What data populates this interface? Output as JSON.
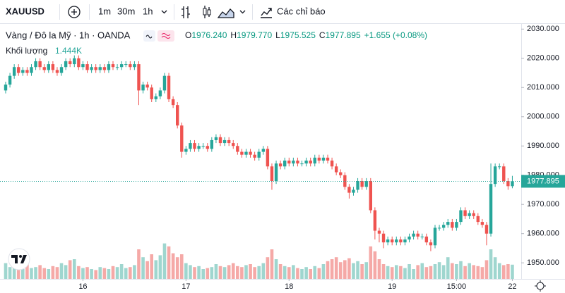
{
  "chart_data": {
    "type": "candlestick",
    "symbol": "XAUUSD",
    "toolbar": {
      "intervals": [
        "1m",
        "30m",
        "1h"
      ],
      "indicators": "Các chỉ báo"
    },
    "title": "Vàng / Đô la Mỹ · 1h · OANDA",
    "ohlc": [
      {
        "key": "O",
        "text": "1976.240"
      },
      {
        "key": "H",
        "text": "1979.770"
      },
      {
        "key": "L",
        "text": "1975.525"
      },
      {
        "key": "C",
        "text": "1977.895"
      }
    ],
    "change": "+1.655 (+0.08%)",
    "volume_title": "Khối lượng",
    "volume_label": "1.444K",
    "last_price_label": "1977.895",
    "up_color": "#26a69a",
    "down_color": "#ef5350",
    "volume_up_color": "#9fd6cf",
    "volume_down_color": "#f5a9a7",
    "ylim": [
      1944.5,
      2032
    ],
    "yticks": [
      {
        "value": 1950,
        "label": "1950.000"
      },
      {
        "value": 1960,
        "label": "1960.000"
      },
      {
        "value": 1970,
        "label": "1970.000"
      },
      {
        "value": 1980,
        "label": "1980.000"
      },
      {
        "value": 1990,
        "label": "1990.000"
      },
      {
        "value": 2000,
        "label": "2000.000"
      },
      {
        "value": 2010,
        "label": "2010.000"
      },
      {
        "value": 2020,
        "label": "2020.000"
      },
      {
        "value": 2030,
        "label": "2030.000"
      }
    ],
    "categories": [
      null,
      null,
      null,
      null,
      null,
      null,
      null,
      null,
      null,
      null,
      null,
      null,
      null,
      null,
      null,
      null,
      null,
      null,
      "16",
      null,
      null,
      null,
      null,
      null,
      null,
      null,
      null,
      null,
      null,
      null,
      null,
      null,
      null,
      null,
      null,
      null,
      null,
      null,
      null,
      null,
      null,
      null,
      "17",
      null,
      null,
      null,
      null,
      null,
      null,
      null,
      null,
      null,
      null,
      null,
      null,
      null,
      null,
      null,
      null,
      null,
      null,
      null,
      null,
      null,
      null,
      null,
      "18",
      null,
      null,
      null,
      null,
      null,
      null,
      null,
      null,
      null,
      null,
      null,
      null,
      null,
      null,
      null,
      null,
      null,
      null,
      null,
      null,
      null,
      null,
      null,
      "19",
      null,
      null,
      null,
      null,
      null,
      null,
      null,
      null,
      null,
      null,
      null,
      null,
      null,
      null,
      "15:00",
      null,
      null,
      null,
      null,
      null,
      null,
      null,
      null,
      null,
      null,
      null,
      null,
      "22"
    ],
    "open": [
      2009,
      2011,
      2014,
      2017,
      2015,
      2016,
      2015,
      2017,
      2019,
      2017,
      2016,
      2018,
      2016,
      2015,
      2017,
      2019,
      2018,
      2020,
      2017,
      2018,
      2016,
      2017,
      2016,
      2017,
      2016,
      2018,
      2017,
      2017,
      2018,
      2018,
      2017,
      2018,
      2009,
      2011,
      2010,
      2006,
      2007,
      2009,
      2014,
      2006,
      2004,
      1997,
      1988,
      1989,
      1991,
      1989,
      1990,
      1990,
      1989,
      1992,
      1993,
      1991,
      1992,
      1991,
      1990,
      1988,
      1987,
      1988,
      1987,
      1986,
      1988,
      1989,
      1983,
      1978,
      1984,
      1983,
      1985,
      1984,
      1985,
      1984,
      1984,
      1985,
      1984,
      1986,
      1985,
      1986,
      1985,
      1983,
      1981,
      1980,
      1976,
      1974,
      1975,
      1978,
      1976,
      1978,
      1968,
      1961,
      1960,
      1957,
      1958,
      1957,
      1958,
      1957,
      1958,
      1959,
      1960,
      1959,
      1959,
      1957,
      1956,
      1962,
      1962,
      1963,
      1964,
      1962,
      1964,
      1968,
      1966,
      1967,
      1966,
      1964,
      1963,
      1960,
      1977,
      1983,
      1983,
      1978,
      1976.24
    ],
    "high": [
      2012,
      2015,
      2018,
      2018,
      2017,
      2017,
      2018,
      2020,
      2020,
      2018,
      2019,
      2019,
      2017,
      2018,
      2020,
      2020,
      2021,
      2021,
      2019,
      2019,
      2018,
      2018,
      2018,
      2018,
      2019,
      2019,
      2018,
      2019,
      2019,
      2019,
      2019,
      2019,
      2012,
      2012,
      2011,
      2008,
      2010,
      2015,
      2015,
      2007,
      2005,
      1998,
      1990,
      1992,
      1992,
      1991,
      1991,
      1991,
      1993,
      1994,
      1994,
      1993,
      1993,
      1992,
      1991,
      1989,
      1989,
      1989,
      1988,
      1989,
      1990,
      1990,
      1984,
      1985,
      1985,
      1986,
      1986,
      1986,
      1986,
      1985,
      1986,
      1986,
      1987,
      1987,
      1987,
      1987,
      1986,
      1984,
      1982,
      1981,
      1977,
      1976,
      1979,
      1979,
      1979,
      1979,
      1969,
      1962,
      1961,
      1959,
      1959,
      1959,
      1959,
      1959,
      1960,
      1961,
      1961,
      1960,
      1960,
      1958,
      1963,
      1963,
      1964,
      1965,
      1965,
      1965,
      1969,
      1969,
      1968,
      1968,
      1967,
      1965,
      1964,
      1984,
      1984,
      1984,
      1984,
      1979,
      1979.77
    ],
    "low": [
      2008,
      2010,
      2013,
      2014,
      2014,
      2014,
      2014,
      2016,
      2016,
      2015,
      2015,
      2015,
      2014,
      2014,
      2016,
      2017,
      2017,
      2016,
      2016,
      2015,
      2015,
      2015,
      2015,
      2015,
      2015,
      2016,
      2016,
      2016,
      2017,
      2016,
      2016,
      2004,
      2008,
      2009,
      2005,
      2005,
      2006,
      2008,
      2005,
      2003,
      1996,
      1986,
      1987,
      1988,
      1988,
      1988,
      1989,
      1988,
      1988,
      1991,
      1990,
      1990,
      1990,
      1989,
      1987,
      1986,
      1986,
      1986,
      1985,
      1985,
      1987,
      1982,
      1975,
      1977,
      1982,
      1982,
      1983,
      1983,
      1983,
      1983,
      1983,
      1983,
      1983,
      1984,
      1984,
      1984,
      1982,
      1980,
      1979,
      1975,
      1972,
      1973,
      1974,
      1975,
      1975,
      1967,
      1958,
      1957,
      1955,
      1956,
      1956,
      1956,
      1956,
      1956,
      1957,
      1958,
      1958,
      1958,
      1956,
      1954,
      1955,
      1961,
      1961,
      1962,
      1961,
      1961,
      1963,
      1965,
      1965,
      1965,
      1963,
      1962,
      1956,
      1959,
      1976,
      1982,
      1977,
      1975,
      1975.525
    ],
    "close": [
      2011,
      2014,
      2017,
      2015,
      2016,
      2015,
      2017,
      2019,
      2017,
      2016,
      2018,
      2016,
      2015,
      2017,
      2019,
      2018,
      2020,
      2017,
      2018,
      2016,
      2017,
      2016,
      2017,
      2016,
      2018,
      2017,
      2017,
      2018,
      2018,
      2017,
      2018,
      2009,
      2011,
      2010,
      2006,
      2007,
      2009,
      2014,
      2006,
      2004,
      1997,
      1988,
      1989,
      1991,
      1989,
      1990,
      1990,
      1989,
      1992,
      1993,
      1991,
      1992,
      1991,
      1990,
      1988,
      1987,
      1988,
      1987,
      1986,
      1988,
      1989,
      1983,
      1978,
      1984,
      1983,
      1985,
      1984,
      1985,
      1984,
      1984,
      1985,
      1984,
      1986,
      1985,
      1986,
      1985,
      1983,
      1981,
      1980,
      1976,
      1974,
      1975,
      1978,
      1976,
      1978,
      1968,
      1961,
      1960,
      1957,
      1958,
      1957,
      1958,
      1957,
      1958,
      1959,
      1960,
      1959,
      1959,
      1957,
      1956,
      1962,
      1962,
      1963,
      1964,
      1962,
      1964,
      1968,
      1966,
      1967,
      1966,
      1964,
      1963,
      1960,
      1977,
      1983,
      1983,
      1978,
      1976.24,
      1977.895
    ],
    "volume": [
      1.6,
      1.2,
      1.4,
      1.3,
      1.0,
      1.5,
      1.1,
      1.2,
      1.4,
      1.1,
      1.0,
      1.3,
      1.2,
      1.6,
      1.4,
      1.9,
      2.0,
      1.3,
      1.1,
      1.2,
      1.0,
      0.9,
      1.2,
      1.1,
      1.0,
      1.3,
      1.2,
      1.5,
      1.1,
      1.2,
      1.4,
      3.0,
      2.2,
      1.8,
      2.5,
      1.9,
      2.4,
      3.6,
      3.3,
      2.6,
      2.2,
      2.5,
      1.6,
      1.4,
      1.2,
      1.3,
      1.0,
      1.1,
      1.2,
      1.5,
      1.3,
      1.2,
      1.4,
      1.6,
      1.3,
      1.2,
      1.4,
      1.5,
      1.2,
      1.3,
      1.6,
      2.2,
      3.0,
      2.0,
      1.5,
      1.3,
      1.2,
      1.4,
      1.1,
      1.0,
      1.2,
      1.0,
      1.3,
      1.1,
      1.5,
      1.8,
      2.0,
      2.2,
      1.7,
      1.9,
      2.1,
      1.6,
      1.8,
      1.5,
      1.7,
      3.3,
      2.8,
      2.0,
      1.5,
      1.3,
      1.2,
      1.4,
      1.3,
      1.1,
      1.5,
      1.0,
      1.4,
      1.6,
      1.2,
      1.3,
      1.5,
      1.7,
      1.4,
      2.2,
      1.6,
      1.5,
      1.8,
      1.3,
      1.6,
      1.4,
      1.3,
      1.2,
      1.9,
      3.0,
      2.2,
      1.6,
      1.4,
      1.5,
      1.444
    ]
  }
}
